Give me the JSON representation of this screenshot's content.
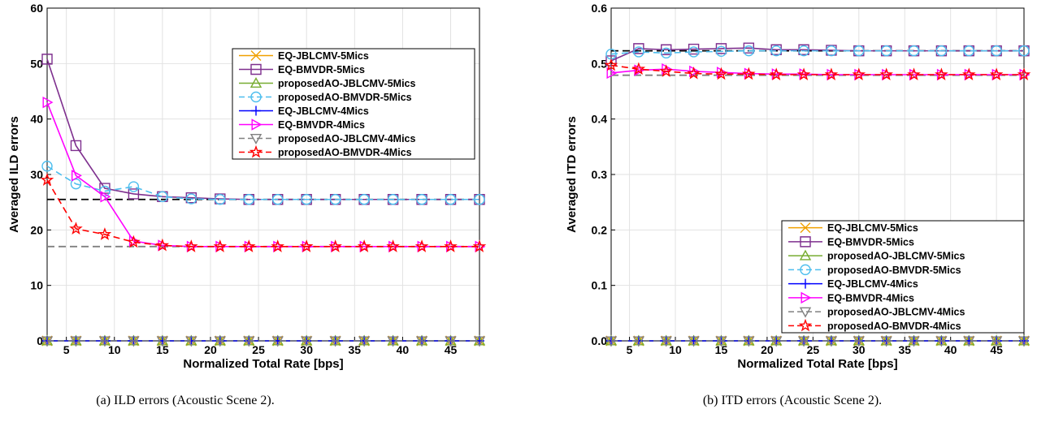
{
  "figure": {
    "captions": [
      "(a) ILD errors (Acoustic Scene 2).",
      "(b) ITD errors (Acoustic Scene 2)."
    ]
  },
  "chart_data": [
    {
      "type": "line",
      "xlabel": "Normalized Total Rate [bps]",
      "ylabel": "Averaged ILD errors",
      "xlim": [
        3,
        48
      ],
      "ylim": [
        0,
        60
      ],
      "xticks": [
        5,
        10,
        15,
        20,
        25,
        30,
        35,
        40,
        45
      ],
      "yticks": [
        0,
        10,
        20,
        30,
        40,
        50,
        60
      ],
      "grid": true,
      "legend_position": "top-right",
      "x": [
        3,
        6,
        9,
        12,
        15,
        18,
        21,
        24,
        27,
        30,
        33,
        36,
        39,
        42,
        45,
        48
      ],
      "series": [
        {
          "name": "EQ-JBLCMV-5Mics",
          "color": "#f0a000",
          "marker": "x",
          "dash": "solid",
          "values": [
            0,
            0,
            0,
            0,
            0,
            0,
            0,
            0,
            0,
            0,
            0,
            0,
            0,
            0,
            0,
            0
          ]
        },
        {
          "name": "EQ-BMVDR-5Mics",
          "color": "#7e2f8e",
          "marker": "square",
          "dash": "solid",
          "values": [
            50.8,
            35.2,
            27.5,
            26.5,
            26.0,
            25.8,
            25.6,
            25.5,
            25.5,
            25.5,
            25.5,
            25.5,
            25.5,
            25.5,
            25.5,
            25.5
          ]
        },
        {
          "name": "proposedAO-JBLCMV-5Mics",
          "color": "#77ac30",
          "marker": "triangle-up",
          "dash": "solid",
          "values": [
            0,
            0,
            0,
            0,
            0,
            0,
            0,
            0,
            0,
            0,
            0,
            0,
            0,
            0,
            0,
            0
          ]
        },
        {
          "name": "proposedAO-BMVDR-5Mics",
          "color": "#4dbeee",
          "marker": "circle",
          "dash": "dashed",
          "values": [
            31.5,
            28.3,
            27.0,
            27.8,
            26.0,
            25.6,
            25.5,
            25.5,
            25.5,
            25.5,
            25.5,
            25.5,
            25.5,
            25.5,
            25.5,
            25.5
          ]
        },
        {
          "name": "EQ-JBLCMV-4Mics",
          "color": "#0000ff",
          "marker": "plus",
          "dash": "solid",
          "values": [
            0,
            0,
            0,
            0,
            0,
            0,
            0,
            0,
            0,
            0,
            0,
            0,
            0,
            0,
            0,
            0
          ]
        },
        {
          "name": "EQ-BMVDR-4Mics",
          "color": "#ff00ff",
          "marker": "triangle-right",
          "dash": "solid",
          "values": [
            43.0,
            29.8,
            26.0,
            18.0,
            17.2,
            17.0,
            17.0,
            17.0,
            17.0,
            17.0,
            17.0,
            17.0,
            17.0,
            17.0,
            17.0,
            17.0
          ]
        },
        {
          "name": "proposedAO-JBLCMV-4Mics",
          "color": "#808080",
          "marker": "triangle-down",
          "dash": "dashed",
          "values": [
            0,
            0,
            0,
            0,
            0,
            0,
            0,
            0,
            0,
            0,
            0,
            0,
            0,
            0,
            0,
            0
          ]
        },
        {
          "name": "proposedAO-BMVDR-4Mics",
          "color": "#ff0000",
          "marker": "star",
          "dash": "dashed",
          "values": [
            29.0,
            20.2,
            19.2,
            17.8,
            17.2,
            17.0,
            17.0,
            17.0,
            17.0,
            17.0,
            17.0,
            17.0,
            17.0,
            17.0,
            17.0,
            17.0
          ]
        }
      ],
      "reference_lines": [
        {
          "y": 25.5,
          "color": "#000000"
        },
        {
          "y": 17.0,
          "color": "#808080"
        }
      ]
    },
    {
      "type": "line",
      "xlabel": "Normalized Total Rate [bps]",
      "ylabel": "Averaged ITD errors",
      "xlim": [
        3,
        48
      ],
      "ylim": [
        0,
        0.6
      ],
      "xticks": [
        5,
        10,
        15,
        20,
        25,
        30,
        35,
        40,
        45
      ],
      "yticks": [
        0,
        0.1,
        0.2,
        0.3,
        0.4,
        0.5,
        0.6
      ],
      "grid": true,
      "legend_position": "bottom-right",
      "x": [
        3,
        6,
        9,
        12,
        15,
        18,
        21,
        24,
        27,
        30,
        33,
        36,
        39,
        42,
        45,
        48
      ],
      "series": [
        {
          "name": "EQ-JBLCMV-5Mics",
          "color": "#f0a000",
          "marker": "x",
          "dash": "solid",
          "values": [
            0,
            0,
            0,
            0,
            0,
            0,
            0,
            0,
            0,
            0,
            0,
            0,
            0,
            0,
            0,
            0
          ]
        },
        {
          "name": "EQ-BMVDR-5Mics",
          "color": "#7e2f8e",
          "marker": "square",
          "dash": "solid",
          "values": [
            0.505,
            0.527,
            0.525,
            0.526,
            0.527,
            0.528,
            0.525,
            0.525,
            0.524,
            0.523,
            0.523,
            0.523,
            0.523,
            0.523,
            0.523,
            0.523
          ]
        },
        {
          "name": "proposedAO-JBLCMV-5Mics",
          "color": "#77ac30",
          "marker": "triangle-up",
          "dash": "solid",
          "values": [
            0,
            0,
            0,
            0,
            0,
            0,
            0,
            0,
            0,
            0,
            0,
            0,
            0,
            0,
            0,
            0
          ]
        },
        {
          "name": "proposedAO-BMVDR-5Mics",
          "color": "#4dbeee",
          "marker": "circle",
          "dash": "dashed",
          "values": [
            0.517,
            0.521,
            0.519,
            0.521,
            0.522,
            0.523,
            0.523,
            0.523,
            0.523,
            0.523,
            0.523,
            0.523,
            0.523,
            0.523,
            0.523,
            0.523
          ]
        },
        {
          "name": "EQ-JBLCMV-4Mics",
          "color": "#0000ff",
          "marker": "plus",
          "dash": "solid",
          "values": [
            0,
            0,
            0,
            0,
            0,
            0,
            0,
            0,
            0,
            0,
            0,
            0,
            0,
            0,
            0,
            0
          ]
        },
        {
          "name": "EQ-BMVDR-4Mics",
          "color": "#ff00ff",
          "marker": "triangle-right",
          "dash": "solid",
          "values": [
            0.483,
            0.488,
            0.49,
            0.486,
            0.484,
            0.482,
            0.481,
            0.481,
            0.48,
            0.48,
            0.48,
            0.48,
            0.48,
            0.48,
            0.48,
            0.48
          ]
        },
        {
          "name": "proposedAO-JBLCMV-4Mics",
          "color": "#808080",
          "marker": "triangle-down",
          "dash": "dashed",
          "values": [
            0,
            0,
            0,
            0,
            0,
            0,
            0,
            0,
            0,
            0,
            0,
            0,
            0,
            0,
            0,
            0
          ]
        },
        {
          "name": "proposedAO-BMVDR-4Mics",
          "color": "#ff0000",
          "marker": "star",
          "dash": "dashed",
          "values": [
            0.497,
            0.49,
            0.486,
            0.482,
            0.481,
            0.481,
            0.48,
            0.48,
            0.48,
            0.48,
            0.48,
            0.48,
            0.48,
            0.48,
            0.48,
            0.48
          ]
        }
      ],
      "reference_lines": [
        {
          "y": 0.523,
          "color": "#000000"
        },
        {
          "y": 0.479,
          "color": "#808080"
        }
      ]
    }
  ]
}
